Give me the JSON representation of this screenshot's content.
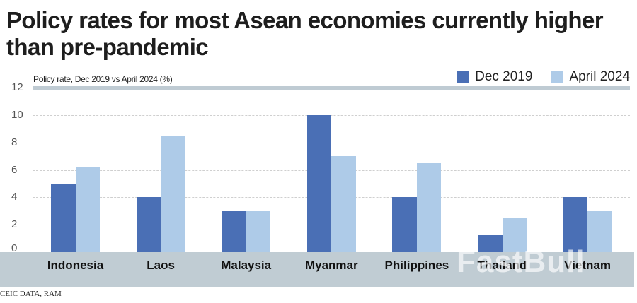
{
  "header": {
    "title": "Policy rates for most Asean economies currently higher than pre-pandemic",
    "subtitle": "Policy rate, Dec 2019 vs April 2024 (%)"
  },
  "legend": [
    {
      "label": "Dec 2019",
      "color": "#4a6fb5"
    },
    {
      "label": "April 2024",
      "color": "#aecbe8"
    }
  ],
  "yaxis": {
    "ticks": [
      "12",
      "10",
      "8",
      "6",
      "4",
      "2",
      "0"
    ]
  },
  "footer": {
    "source": "CEIC DATA, RAM",
    "watermark": "FastBull"
  },
  "colors": {
    "dec2019": "#4a6fb5",
    "apr2024": "#aecbe8",
    "axis_band": "#c0ccd3"
  },
  "chart_data": {
    "type": "bar",
    "title": "Policy rates for most Asean economies currently higher than pre-pandemic",
    "subtitle": "Policy rate, Dec 2019 vs April 2024 (%)",
    "xlabel": "",
    "ylabel": "Policy rate (%)",
    "ylim": [
      0,
      12
    ],
    "yticks": [
      0,
      2,
      4,
      6,
      8,
      10,
      12
    ],
    "grid": true,
    "legend_position": "top-right",
    "categories": [
      "Indonesia",
      "Laos",
      "Malaysia",
      "Myanmar",
      "Philippines",
      "Thailand",
      "Vietnam"
    ],
    "series": [
      {
        "name": "Dec 2019",
        "color": "#4a6fb5",
        "values": [
          5.0,
          4.0,
          3.0,
          10.0,
          4.0,
          1.25,
          4.0
        ]
      },
      {
        "name": "April 2024",
        "color": "#aecbe8",
        "values": [
          6.25,
          8.5,
          3.0,
          7.0,
          6.5,
          2.5,
          3.0
        ]
      }
    ],
    "source": "CEIC DATA, RAM"
  }
}
